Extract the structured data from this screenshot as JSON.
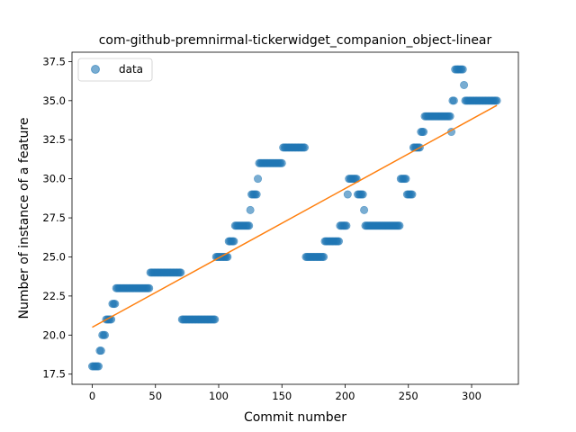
{
  "chart_data": {
    "type": "scatter",
    "title": "com-github-premnirmal-tickerwidget_companion_object-linear",
    "xlabel": "Commit number",
    "ylabel": "Number of instance of a feature",
    "xlim": [
      -16,
      337
    ],
    "ylim": [
      16.85,
      38.1
    ],
    "x_ticks": [
      0,
      50,
      100,
      150,
      200,
      250,
      300
    ],
    "y_ticks": [
      17.5,
      20.0,
      22.5,
      25.0,
      27.5,
      30.0,
      32.5,
      35.0,
      37.5
    ],
    "legend": {
      "position": "top-left",
      "entries": [
        "data"
      ]
    },
    "colors": {
      "data": "#1f77b4",
      "fit": "#ff7f0e"
    },
    "segments": [
      {
        "x_start": 0,
        "x_end": 6,
        "y": 18
      },
      {
        "x_start": 6,
        "x_end": 8,
        "y": 19
      },
      {
        "x_start": 8,
        "x_end": 11,
        "y": 20
      },
      {
        "x_start": 11,
        "x_end": 16,
        "y": 21
      },
      {
        "x_start": 16,
        "x_end": 19,
        "y": 22
      },
      {
        "x_start": 19,
        "x_end": 46,
        "y": 23
      },
      {
        "x_start": 46,
        "x_end": 71,
        "y": 24
      },
      {
        "x_start": 71,
        "x_end": 98,
        "y": 21
      },
      {
        "x_start": 98,
        "x_end": 108,
        "y": 25
      },
      {
        "x_start": 108,
        "x_end": 113,
        "y": 26
      },
      {
        "x_start": 113,
        "x_end": 125,
        "y": 27
      },
      {
        "x_start": 125,
        "x_end": 126,
        "y": 28
      },
      {
        "x_start": 126,
        "x_end": 131,
        "y": 29
      },
      {
        "x_start": 131,
        "x_end": 132,
        "y": 30
      },
      {
        "x_start": 132,
        "x_end": 151,
        "y": 31
      },
      {
        "x_start": 151,
        "x_end": 169,
        "y": 32
      },
      {
        "x_start": 169,
        "x_end": 184,
        "y": 25
      },
      {
        "x_start": 184,
        "x_end": 196,
        "y": 26
      },
      {
        "x_start": 196,
        "x_end": 202,
        "y": 27
      },
      {
        "x_start": 202,
        "x_end": 203,
        "y": 29
      },
      {
        "x_start": 203,
        "x_end": 210,
        "y": 30
      },
      {
        "x_start": 210,
        "x_end": 215,
        "y": 29
      },
      {
        "x_start": 215,
        "x_end": 216,
        "y": 28
      },
      {
        "x_start": 216,
        "x_end": 244,
        "y": 27
      },
      {
        "x_start": 244,
        "x_end": 249,
        "y": 30
      },
      {
        "x_start": 249,
        "x_end": 254,
        "y": 29
      },
      {
        "x_start": 254,
        "x_end": 260,
        "y": 32
      },
      {
        "x_start": 260,
        "x_end": 263,
        "y": 33
      },
      {
        "x_start": 263,
        "x_end": 284,
        "y": 34
      },
      {
        "x_start": 284,
        "x_end": 285,
        "y": 33
      },
      {
        "x_start": 285,
        "x_end": 287,
        "y": 35
      },
      {
        "x_start": 287,
        "x_end": 294,
        "y": 37
      },
      {
        "x_start": 294,
        "x_end": 295,
        "y": 36
      },
      {
        "x_start": 295,
        "x_end": 321,
        "y": 35
      }
    ],
    "fit_line": {
      "x": [
        0,
        320
      ],
      "y": [
        20.5,
        34.7
      ]
    }
  }
}
